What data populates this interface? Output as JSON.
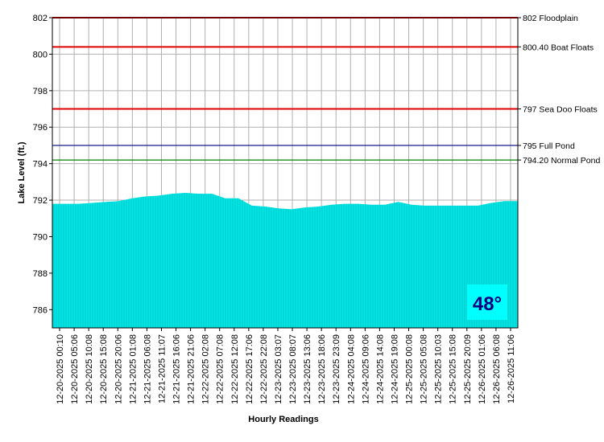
{
  "chart_data": {
    "type": "area",
    "xlabel": "Hourly Readings",
    "ylabel": "Lake Level (ft.)",
    "ylim": [
      785,
      802
    ],
    "yticks": [
      786,
      788,
      790,
      792,
      794,
      796,
      798,
      800,
      802
    ],
    "grid": true,
    "fill_color": "#00e6e6",
    "x_tick_labels": [
      "12-20-2025 00:10",
      "12-20-2025 05:06",
      "12-20-2025 10:08",
      "12-20-2025 15:08",
      "12-20-2025 20:06",
      "12-21-2025 01:08",
      "12-21-2025 06:08",
      "12-21-2025 11:07",
      "12-21-2025 16:06",
      "12-21-2025 21:06",
      "12-22-2025 02:08",
      "12-22-2025 07:08",
      "12-22-2025 12:08",
      "12-22-2025 17:06",
      "12-22-2025 22:08",
      "12-23-2025 03:07",
      "12-23-2025 08:07",
      "12-23-2025 13:06",
      "12-23-2025 18:06",
      "12-23-2025 23:09",
      "12-24-2025 04:08",
      "12-24-2025 09:06",
      "12-24-2025 14:08",
      "12-24-2025 19:08",
      "12-25-2025 00:08",
      "12-25-2025 05:08",
      "12-25-2025 10:03",
      "12-25-2025 15:08",
      "12-25-2025 20:09",
      "12-26-2025 01:06",
      "12-26-2025 06:08",
      "12-26-2025 11:06"
    ],
    "series": [
      {
        "values": [
          791.8,
          791.8,
          791.8,
          791.85,
          791.9,
          791.95,
          792.1,
          792.2,
          792.25,
          792.35,
          792.4,
          792.35,
          792.35,
          792.1,
          792.1,
          791.7,
          791.65,
          791.55,
          791.5,
          791.6,
          791.65,
          791.75,
          791.8,
          791.8,
          791.75,
          791.75,
          791.9,
          791.75,
          791.7,
          791.7,
          791.7,
          791.7,
          791.7,
          791.85,
          791.95,
          791.95
        ]
      }
    ],
    "reference_lines": [
      {
        "value": 802,
        "label": "802 Floodplain",
        "color": "#e00000"
      },
      {
        "value": 800.4,
        "label": "800.40 Boat Floats",
        "color": "#e00000"
      },
      {
        "value": 797,
        "label": "797 Sea Doo Floats",
        "color": "#e00000"
      },
      {
        "value": 795,
        "label": "795 Full Pond",
        "color": "#000080"
      },
      {
        "value": 794.2,
        "label": "794.20 Normal Pond",
        "color": "#008000"
      }
    ]
  },
  "temperature": {
    "label": "48°",
    "text_color": "#000080",
    "background": "#00ffff"
  }
}
